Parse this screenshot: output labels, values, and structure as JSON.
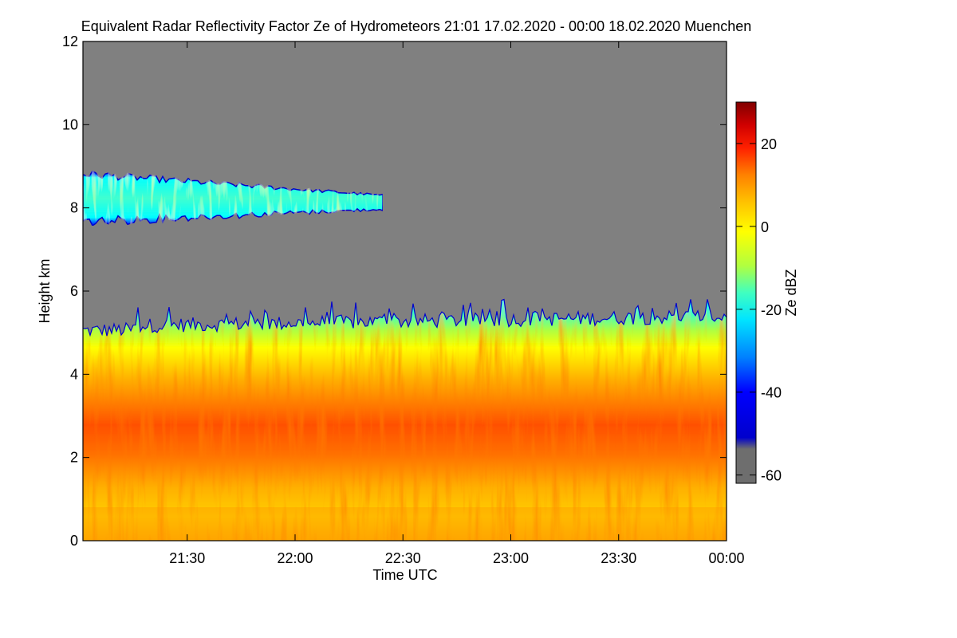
{
  "chart_data": {
    "type": "heatmap",
    "title": "Equivalent Radar Reflectivity Factor Ze of Hydrometeors   21:01 17.02.2020 - 00:00 18.02.2020 Muenchen",
    "xlabel": "Time UTC",
    "ylabel": "Height km",
    "xlim": [
      "21:01",
      "00:00"
    ],
    "ylim": [
      0,
      12
    ],
    "x_ticks": [
      "21:30",
      "22:00",
      "22:30",
      "23:00",
      "23:30",
      "00:00"
    ],
    "y_ticks": [
      "0",
      "2",
      "4",
      "6",
      "8",
      "10",
      "12"
    ],
    "colorbar": {
      "label": "Ze dBZ",
      "range": [
        -62,
        30
      ],
      "ticks": [
        "20",
        "0",
        "-20",
        "-40",
        "-60"
      ],
      "colors": [
        "#6e6e6e",
        "#0000cc",
        "#0000ff",
        "#0080ff",
        "#00e5ff",
        "#40ffc0",
        "#b0ff40",
        "#ffff00",
        "#ffc000",
        "#ff8000",
        "#ff2000",
        "#d00000",
        "#800000"
      ]
    },
    "background_color": "#808080",
    "features": [
      {
        "time_start": "21:01",
        "time_end": "22:25",
        "height_bottom_km": 7.4,
        "height_top_km": 8.7,
        "ze_dbz_range": [
          -45,
          -15
        ]
      },
      {
        "time_start": "21:01",
        "time_end": "00:00",
        "height_bottom_km": 0,
        "height_top_km": 5.5,
        "ze_dbz_range": [
          -45,
          20
        ]
      }
    ]
  }
}
